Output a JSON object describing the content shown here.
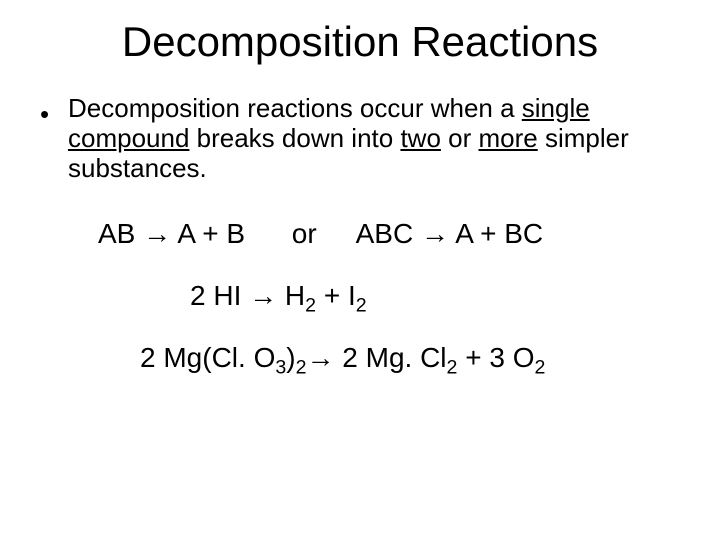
{
  "colors": {
    "background": "#ffffff",
    "text": "#000000"
  },
  "typography": {
    "font_family": "Comic Sans MS",
    "title_fontsize": 42,
    "body_fontsize": 26,
    "equation_fontsize": 28
  },
  "title": "Decomposition Reactions",
  "bullet": {
    "marker": "•",
    "pre": "Decomposition reactions occur when a ",
    "u1": "single compound",
    "mid1": " breaks down into ",
    "u2": "two",
    "mid2": " or ",
    "u3": "more",
    "post": " simpler substances."
  },
  "eq1": {
    "lhs1": "AB ",
    "arrow1": "→",
    "rhs1": "  A  +  B",
    "or": "or",
    "lhs2": "ABC ",
    "arrow2": "→",
    "rhs2": "   A  + BC"
  },
  "eq2": {
    "lhs": "2 HI ",
    "arrow": "→",
    "rhs_a": "  H",
    "rhs_b": "  +  I",
    "sub2": "2"
  },
  "eq3": {
    "a": "2 Mg(Cl. O",
    "sub3": "3",
    "b": ")",
    "sub2a": "2",
    "arrow": "→",
    "c": " 2 Mg. Cl",
    "sub2b": "2",
    "d": " + 3 O",
    "sub2c": "2"
  }
}
